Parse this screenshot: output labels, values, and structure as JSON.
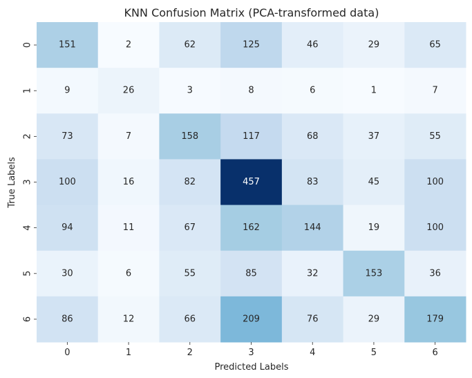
{
  "chart_data": {
    "type": "heatmap",
    "title": "KNN Confusion Matrix (PCA-transformed data)",
    "xlabel": "Predicted Labels",
    "ylabel": "True Labels",
    "x_categories": [
      "0",
      "1",
      "2",
      "3",
      "4",
      "5",
      "6"
    ],
    "y_categories": [
      "0",
      "1",
      "2",
      "3",
      "4",
      "5",
      "6"
    ],
    "values": [
      [
        151,
        2,
        62,
        125,
        46,
        29,
        65
      ],
      [
        9,
        26,
        3,
        8,
        6,
        1,
        7
      ],
      [
        73,
        7,
        158,
        117,
        68,
        37,
        55
      ],
      [
        100,
        16,
        82,
        457,
        83,
        45,
        100
      ],
      [
        94,
        11,
        67,
        162,
        144,
        19,
        100
      ],
      [
        30,
        6,
        55,
        85,
        32,
        153,
        36
      ],
      [
        86,
        12,
        66,
        209,
        76,
        29,
        179
      ]
    ],
    "colormap": "Blues",
    "colorbar": false,
    "annotated": true,
    "grid": false
  }
}
